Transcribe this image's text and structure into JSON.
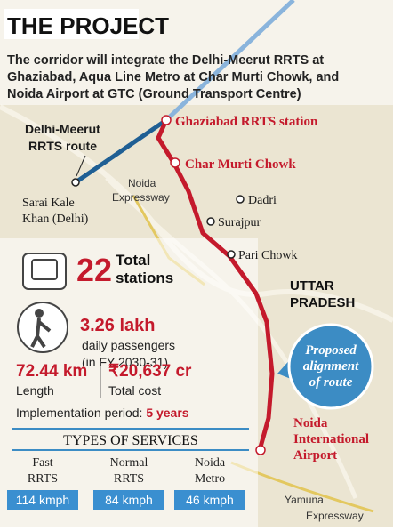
{
  "header": {
    "title": "THE PROJECT",
    "description": [
      "The corridor will integrate the Delhi-Meerut RRTS at",
      "Ghaziabad, Aqua Line Metro at Char Murti Chowk, and",
      "Noida Airport at GTC (Ground Transport Centre)"
    ]
  },
  "map": {
    "route_name": [
      "Delhi-Meerut",
      "RRTS route"
    ],
    "sarai": [
      "Sarai Kale",
      "Khan (Delhi)"
    ],
    "noida_expressway": [
      "Noida",
      "Expressway"
    ],
    "ghaziabad": "Ghaziabad RRTS station",
    "char_murti": "Char Murti Chowk",
    "dadri": "Dadri",
    "surajpur": "Surajpur",
    "pari_chowk": "Pari Chowk",
    "state": [
      "UTTAR",
      "PRADESH"
    ],
    "badge": [
      "Proposed",
      "alignment",
      "of route"
    ],
    "airport": [
      "Noida",
      "International",
      "Airport"
    ],
    "yamuna": [
      "Yamuna",
      "Expressway"
    ]
  },
  "stats": {
    "stations": {
      "value": "22",
      "label": [
        "Total",
        "stations"
      ]
    },
    "passengers": {
      "value": "3.26 lakh",
      "label": [
        "daily passengers",
        "(in FY 2030-31)"
      ]
    },
    "length": {
      "value": "72.44 km",
      "label": "Length"
    },
    "cost": {
      "value": "₹20,637 cr",
      "label": "Total cost"
    },
    "implementation": {
      "label": "Implementation period:",
      "value": "5 years"
    }
  },
  "services": {
    "title": "TYPES OF SERVICES",
    "items": [
      {
        "name": [
          "Fast",
          "RRTS"
        ],
        "speed": "114 kmph"
      },
      {
        "name": [
          "Normal",
          "RRTS"
        ],
        "speed": "84 kmph"
      },
      {
        "name": [
          "Noida",
          "Metro"
        ],
        "speed": "46 kmph"
      }
    ]
  }
}
